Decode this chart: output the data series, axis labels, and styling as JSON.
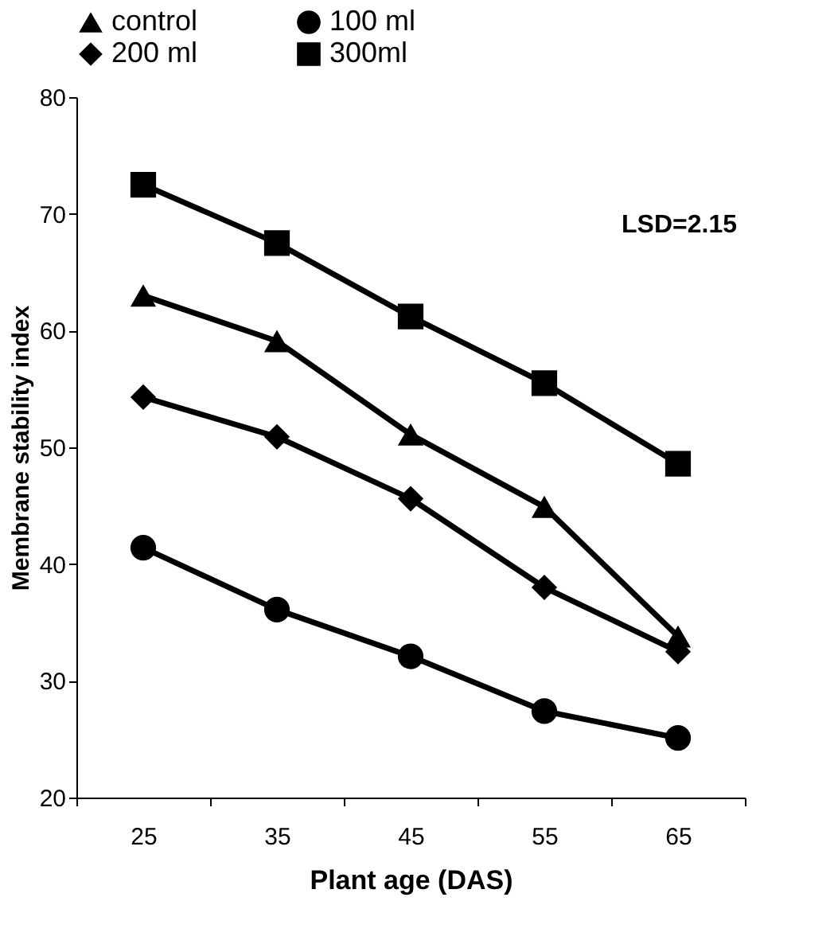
{
  "chart_data": {
    "type": "line",
    "xlabel": "Plant age (DAS)",
    "ylabel": "Membrane stability index",
    "categories": [
      "25",
      "35",
      "45",
      "55",
      "65"
    ],
    "series": [
      {
        "name": "control",
        "color": "#000000",
        "marker": "triangle",
        "values": [
          63.0,
          59.1,
          51.1,
          44.9,
          33.8
        ]
      },
      {
        "name": "100 ml",
        "color": "#000000",
        "marker": "circle",
        "values": [
          41.4,
          36.1,
          32.1,
          27.4,
          25.1
        ]
      },
      {
        "name": "200 ml",
        "color": "#000000",
        "marker": "diamond",
        "values": [
          54.3,
          50.9,
          45.6,
          38.0,
          32.5
        ]
      },
      {
        "name": "300ml",
        "color": "#000000",
        "marker": "square",
        "values": [
          72.5,
          67.5,
          61.2,
          55.5,
          48.6
        ]
      }
    ],
    "ylim": [
      20,
      80
    ],
    "yticks": [
      20,
      30,
      40,
      50,
      60,
      70,
      80
    ],
    "annotations": [
      "LSD=2.15"
    ],
    "grid": false,
    "legend": "top",
    "line_style": "solid"
  }
}
